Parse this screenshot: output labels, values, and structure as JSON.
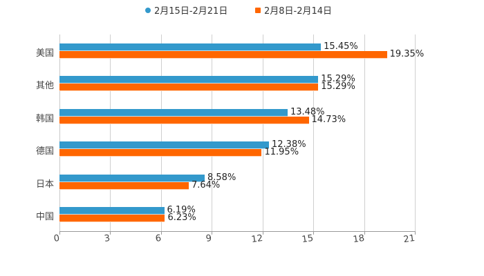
{
  "legend": [
    {
      "label": "2月15日-2月21日",
      "color": "#3399cc",
      "marker": "circle"
    },
    {
      "label": "2月8日-2月14日",
      "color": "#ff6600",
      "marker": "square"
    }
  ],
  "chart_data": {
    "type": "bar",
    "orientation": "horizontal",
    "title": "",
    "xlabel": "",
    "ylabel": "",
    "categories": [
      "美国",
      "其他",
      "韩国",
      "德国",
      "日本",
      "中国"
    ],
    "series": [
      {
        "name": "2月15日-2月21日",
        "color": "#3399cc",
        "values": [
          15.45,
          15.29,
          13.48,
          12.38,
          8.58,
          6.19
        ],
        "labels": [
          "15.45%",
          "15.29%",
          "13.48%",
          "12.38%",
          "8.58%",
          "6.19%"
        ]
      },
      {
        "name": "2月8日-2月14日",
        "color": "#ff6600",
        "values": [
          19.35,
          15.29,
          14.73,
          11.95,
          7.64,
          6.23
        ],
        "labels": [
          "19.35%",
          "15.29%",
          "14.73%",
          "11.95%",
          "7.64%",
          "6.23%"
        ]
      }
    ],
    "xlim": [
      0,
      21
    ],
    "xticks": [
      "0",
      "3",
      "6",
      "9",
      "12",
      "15",
      "18",
      "21"
    ],
    "grid": true,
    "legend_position": "top"
  }
}
